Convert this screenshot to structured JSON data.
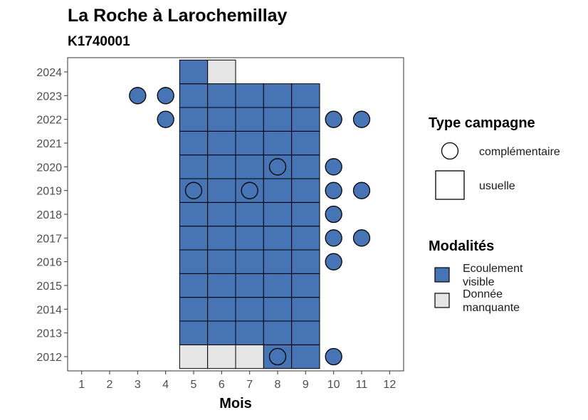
{
  "chart_data": {
    "type": "heatmap",
    "title": "La Roche à Larochemillay",
    "subtitle": "K1740001",
    "xlabel": "Mois",
    "ylabel": "",
    "x_ticks": [
      "1",
      "2",
      "3",
      "4",
      "5",
      "6",
      "7",
      "8",
      "9",
      "10",
      "11",
      "12"
    ],
    "y_ticks": [
      "2012",
      "2013",
      "2014",
      "2015",
      "2016",
      "2017",
      "2018",
      "2019",
      "2020",
      "2021",
      "2022",
      "2023",
      "2024"
    ],
    "xlim": [
      0.5,
      12.5
    ],
    "ylim": [
      2011.4,
      2024.6
    ],
    "grid": false,
    "legend_position": "right",
    "colors": {
      "visible": "#4774b4",
      "manquante": "#e5e5e5",
      "circle": "#4774b4"
    },
    "tiles": [
      {
        "month": 5,
        "year": 2012,
        "modalite": "manquante"
      },
      {
        "month": 6,
        "year": 2012,
        "modalite": "manquante"
      },
      {
        "month": 7,
        "year": 2012,
        "modalite": "manquante"
      },
      {
        "month": 8,
        "year": 2012,
        "modalite": "visible"
      },
      {
        "month": 9,
        "year": 2012,
        "modalite": "visible"
      },
      {
        "month": 5,
        "year": 2013,
        "modalite": "visible"
      },
      {
        "month": 6,
        "year": 2013,
        "modalite": "visible"
      },
      {
        "month": 7,
        "year": 2013,
        "modalite": "visible"
      },
      {
        "month": 8,
        "year": 2013,
        "modalite": "visible"
      },
      {
        "month": 9,
        "year": 2013,
        "modalite": "visible"
      },
      {
        "month": 5,
        "year": 2014,
        "modalite": "visible"
      },
      {
        "month": 6,
        "year": 2014,
        "modalite": "visible"
      },
      {
        "month": 7,
        "year": 2014,
        "modalite": "visible"
      },
      {
        "month": 8,
        "year": 2014,
        "modalite": "visible"
      },
      {
        "month": 9,
        "year": 2014,
        "modalite": "visible"
      },
      {
        "month": 5,
        "year": 2015,
        "modalite": "visible"
      },
      {
        "month": 6,
        "year": 2015,
        "modalite": "visible"
      },
      {
        "month": 7,
        "year": 2015,
        "modalite": "visible"
      },
      {
        "month": 8,
        "year": 2015,
        "modalite": "visible"
      },
      {
        "month": 9,
        "year": 2015,
        "modalite": "visible"
      },
      {
        "month": 5,
        "year": 2016,
        "modalite": "visible"
      },
      {
        "month": 6,
        "year": 2016,
        "modalite": "visible"
      },
      {
        "month": 7,
        "year": 2016,
        "modalite": "visible"
      },
      {
        "month": 8,
        "year": 2016,
        "modalite": "visible"
      },
      {
        "month": 9,
        "year": 2016,
        "modalite": "visible"
      },
      {
        "month": 5,
        "year": 2017,
        "modalite": "visible"
      },
      {
        "month": 6,
        "year": 2017,
        "modalite": "visible"
      },
      {
        "month": 7,
        "year": 2017,
        "modalite": "visible"
      },
      {
        "month": 8,
        "year": 2017,
        "modalite": "visible"
      },
      {
        "month": 9,
        "year": 2017,
        "modalite": "visible"
      },
      {
        "month": 5,
        "year": 2018,
        "modalite": "visible"
      },
      {
        "month": 6,
        "year": 2018,
        "modalite": "visible"
      },
      {
        "month": 7,
        "year": 2018,
        "modalite": "visible"
      },
      {
        "month": 8,
        "year": 2018,
        "modalite": "visible"
      },
      {
        "month": 9,
        "year": 2018,
        "modalite": "visible"
      },
      {
        "month": 5,
        "year": 2019,
        "modalite": "visible"
      },
      {
        "month": 6,
        "year": 2019,
        "modalite": "visible"
      },
      {
        "month": 7,
        "year": 2019,
        "modalite": "visible"
      },
      {
        "month": 8,
        "year": 2019,
        "modalite": "visible"
      },
      {
        "month": 9,
        "year": 2019,
        "modalite": "visible"
      },
      {
        "month": 5,
        "year": 2020,
        "modalite": "visible"
      },
      {
        "month": 6,
        "year": 2020,
        "modalite": "visible"
      },
      {
        "month": 7,
        "year": 2020,
        "modalite": "visible"
      },
      {
        "month": 8,
        "year": 2020,
        "modalite": "visible"
      },
      {
        "month": 9,
        "year": 2020,
        "modalite": "visible"
      },
      {
        "month": 5,
        "year": 2021,
        "modalite": "visible"
      },
      {
        "month": 6,
        "year": 2021,
        "modalite": "visible"
      },
      {
        "month": 7,
        "year": 2021,
        "modalite": "visible"
      },
      {
        "month": 8,
        "year": 2021,
        "modalite": "visible"
      },
      {
        "month": 9,
        "year": 2021,
        "modalite": "visible"
      },
      {
        "month": 5,
        "year": 2022,
        "modalite": "visible"
      },
      {
        "month": 6,
        "year": 2022,
        "modalite": "visible"
      },
      {
        "month": 7,
        "year": 2022,
        "modalite": "visible"
      },
      {
        "month": 8,
        "year": 2022,
        "modalite": "visible"
      },
      {
        "month": 9,
        "year": 2022,
        "modalite": "visible"
      },
      {
        "month": 5,
        "year": 2023,
        "modalite": "visible"
      },
      {
        "month": 6,
        "year": 2023,
        "modalite": "visible"
      },
      {
        "month": 7,
        "year": 2023,
        "modalite": "visible"
      },
      {
        "month": 8,
        "year": 2023,
        "modalite": "visible"
      },
      {
        "month": 9,
        "year": 2023,
        "modalite": "visible"
      },
      {
        "month": 5,
        "year": 2024,
        "modalite": "visible"
      },
      {
        "month": 6,
        "year": 2024,
        "modalite": "manquante"
      }
    ],
    "points": [
      {
        "month": 8,
        "year": 2012,
        "filled": false
      },
      {
        "month": 10,
        "year": 2012,
        "filled": true
      },
      {
        "month": 10,
        "year": 2016,
        "filled": true
      },
      {
        "month": 10,
        "year": 2017,
        "filled": true
      },
      {
        "month": 11,
        "year": 2017,
        "filled": true
      },
      {
        "month": 10,
        "year": 2018,
        "filled": true
      },
      {
        "month": 5,
        "year": 2019,
        "filled": false
      },
      {
        "month": 7,
        "year": 2019,
        "filled": false
      },
      {
        "month": 10,
        "year": 2019,
        "filled": true
      },
      {
        "month": 11,
        "year": 2019,
        "filled": true
      },
      {
        "month": 8,
        "year": 2020,
        "filled": false
      },
      {
        "month": 10,
        "year": 2020,
        "filled": true
      },
      {
        "month": 4,
        "year": 2022,
        "filled": true
      },
      {
        "month": 10,
        "year": 2022,
        "filled": true
      },
      {
        "month": 11,
        "year": 2022,
        "filled": true
      },
      {
        "month": 3,
        "year": 2023,
        "filled": true
      },
      {
        "month": 4,
        "year": 2023,
        "filled": true
      }
    ],
    "legend": {
      "type_title": "Type campagne",
      "type_items": [
        {
          "label": "complémentaire",
          "shape": "circle"
        },
        {
          "label": "usuelle",
          "shape": "square"
        }
      ],
      "modalites_title": "Modalités",
      "modalites_items": [
        {
          "label": [
            "Ecoulement",
            "visible"
          ],
          "color": "#4774b4"
        },
        {
          "label": [
            "Donnée",
            "manquante"
          ],
          "color": "#e5e5e5"
        }
      ]
    }
  }
}
